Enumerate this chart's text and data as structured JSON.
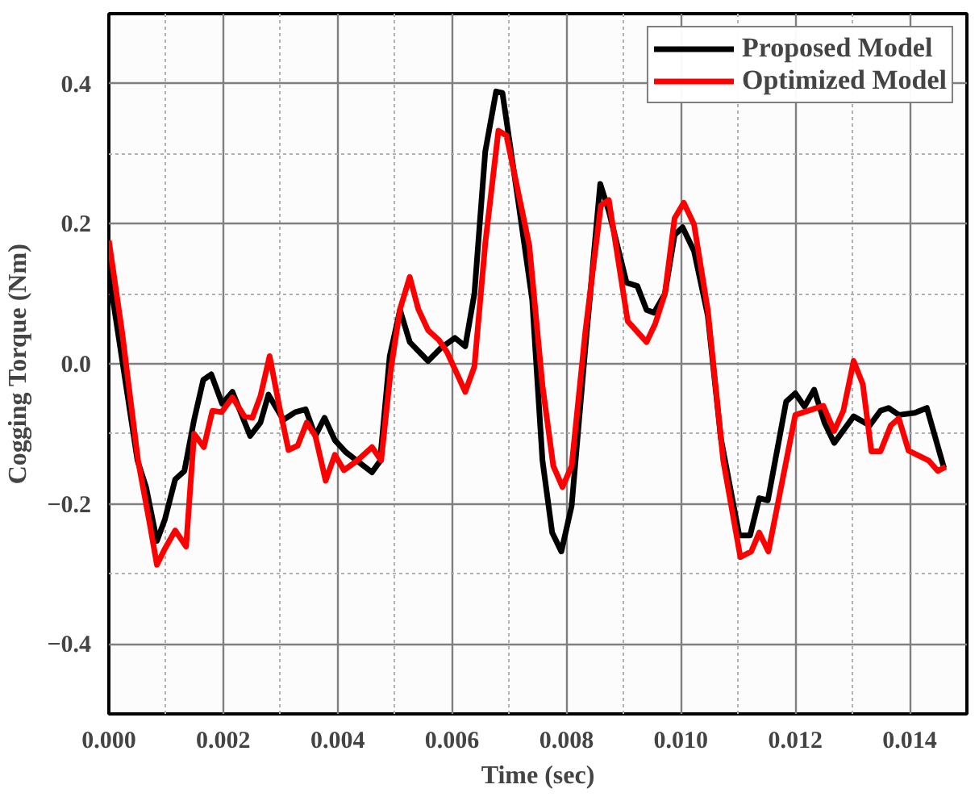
{
  "chart_data": {
    "type": "line",
    "xlabel": "Time (sec)",
    "ylabel": "Cogging Torque (Nm)",
    "xlim": [
      0,
      0.015
    ],
    "ylim": [
      -0.5,
      0.5
    ],
    "xticks": [
      {
        "value": 0,
        "label": "0.000"
      },
      {
        "value": 0.002,
        "label": "0.002"
      },
      {
        "value": 0.004,
        "label": "0.004"
      },
      {
        "value": 0.006,
        "label": "0.006"
      },
      {
        "value": 0.008,
        "label": "0.008"
      },
      {
        "value": 0.01,
        "label": "0.010"
      },
      {
        "value": 0.012,
        "label": "0.012"
      },
      {
        "value": 0.014,
        "label": "0.014"
      }
    ],
    "yticks": [
      -0.4,
      -0.2,
      {
        "value": 0,
        "label": "0.0"
      },
      0.2,
      0.4
    ],
    "grid": true,
    "legend": "top right",
    "line_style": "solid",
    "series": [
      {
        "name": "Proposed Model",
        "color": "#000000",
        "x": [
          0,
          0.0005,
          0.00065,
          0.00084,
          0.00098,
          0.00116,
          0.00132,
          0.00149,
          0.00165,
          0.00179,
          0.00198,
          0.00216,
          0.00247,
          0.00265,
          0.00279,
          0.00305,
          0.00326,
          0.00344,
          0.00361,
          0.00377,
          0.00395,
          0.00414,
          0.00433,
          0.0046,
          0.00474,
          0.00491,
          0.00509,
          0.00526,
          0.00558,
          0.00581,
          0.00605,
          0.00623,
          0.00639,
          0.00658,
          0.00677,
          0.00688,
          0.00716,
          0.0074,
          0.00758,
          0.00775,
          0.00791,
          0.00809,
          0.00833,
          0.00859,
          0.00874,
          0.00905,
          0.00924,
          0.0094,
          0.00953,
          0.00972,
          0.00989,
          0.01003,
          0.01023,
          0.01047,
          0.0107,
          0.01102,
          0.01121,
          0.01137,
          0.01152,
          0.01184,
          0.012,
          0.01216,
          0.01233,
          0.01251,
          0.01268,
          0.01302,
          0.0133,
          0.01349,
          0.01363,
          0.01381,
          0.01409,
          0.0143,
          0.0146
        ],
        "values": [
          0.13,
          -0.138,
          -0.176,
          -0.253,
          -0.222,
          -0.165,
          -0.153,
          -0.08,
          -0.023,
          -0.015,
          -0.057,
          -0.04,
          -0.103,
          -0.084,
          -0.044,
          -0.08,
          -0.069,
          -0.065,
          -0.103,
          -0.077,
          -0.109,
          -0.126,
          -0.138,
          -0.155,
          -0.139,
          0.011,
          0.077,
          0.031,
          0.004,
          0.023,
          0.037,
          0.025,
          0.1,
          0.303,
          0.389,
          0.387,
          0.23,
          0.092,
          -0.138,
          -0.241,
          -0.268,
          -0.203,
          0.023,
          0.257,
          0.218,
          0.116,
          0.111,
          0.077,
          0.073,
          0.1,
          0.184,
          0.195,
          0.161,
          0.069,
          -0.107,
          -0.245,
          -0.245,
          -0.192,
          -0.195,
          -0.054,
          -0.042,
          -0.061,
          -0.037,
          -0.084,
          -0.113,
          -0.075,
          -0.088,
          -0.067,
          -0.063,
          -0.073,
          -0.07,
          -0.063,
          -0.149
        ]
      },
      {
        "name": "Optimized Model",
        "color": "#ff0000",
        "x": [
          0,
          0.00023,
          0.00051,
          0.0007,
          0.00084,
          0.00098,
          0.00116,
          0.00135,
          0.00149,
          0.00166,
          0.00181,
          0.00197,
          0.00216,
          0.00237,
          0.00251,
          0.00265,
          0.00281,
          0.00298,
          0.00314,
          0.0033,
          0.00346,
          0.00361,
          0.00379,
          0.00395,
          0.00411,
          0.00433,
          0.0046,
          0.00476,
          0.00493,
          0.00509,
          0.00526,
          0.00541,
          0.00558,
          0.00577,
          0.00591,
          0.00609,
          0.00623,
          0.00639,
          0.00658,
          0.00681,
          0.00695,
          0.00735,
          0.00758,
          0.00777,
          0.00793,
          0.00809,
          0.00833,
          0.0086,
          0.00874,
          0.00907,
          0.0094,
          0.00955,
          0.00972,
          0.00989,
          0.01005,
          0.01023,
          0.01047,
          0.01074,
          0.01104,
          0.01123,
          0.01137,
          0.01153,
          0.012,
          0.01249,
          0.01268,
          0.01284,
          0.01302,
          0.01318,
          0.01333,
          0.01349,
          0.01367,
          0.01381,
          0.01398,
          0.01433,
          0.01449,
          0.01463
        ],
        "values": [
          0.176,
          0.046,
          -0.138,
          -0.222,
          -0.287,
          -0.264,
          -0.238,
          -0.261,
          -0.1,
          -0.119,
          -0.067,
          -0.069,
          -0.048,
          -0.075,
          -0.077,
          -0.046,
          0.011,
          -0.061,
          -0.123,
          -0.117,
          -0.084,
          -0.103,
          -0.167,
          -0.13,
          -0.152,
          -0.139,
          -0.119,
          -0.138,
          -0.008,
          0.078,
          0.124,
          0.078,
          0.048,
          0.034,
          0.017,
          -0.015,
          -0.04,
          -0.004,
          0.172,
          0.333,
          0.326,
          0.169,
          -0.031,
          -0.146,
          -0.176,
          -0.146,
          0.046,
          0.226,
          0.234,
          0.061,
          0.031,
          0.057,
          0.1,
          0.208,
          0.23,
          0.199,
          0.077,
          -0.138,
          -0.276,
          -0.268,
          -0.241,
          -0.268,
          -0.073,
          -0.06,
          -0.096,
          -0.067,
          0.004,
          -0.029,
          -0.125,
          -0.125,
          -0.088,
          -0.078,
          -0.124,
          -0.138,
          -0.153,
          -0.147
        ]
      }
    ]
  }
}
